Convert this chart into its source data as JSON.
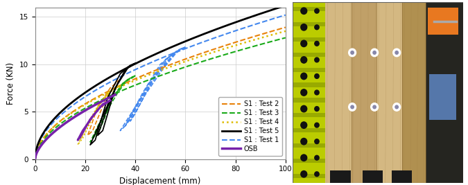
{
  "xlabel": "Displacement (mm)",
  "ylabel": "Force (KN)",
  "xlim": [
    0,
    100
  ],
  "ylim": [
    0,
    16
  ],
  "xticks": [
    0,
    20,
    40,
    60,
    80,
    100
  ],
  "yticks": [
    0,
    5,
    10,
    15
  ],
  "legend_entries": [
    {
      "label": "S1 : Test 2",
      "color": "#E8820A",
      "linestyle": "--",
      "lw": 1.5
    },
    {
      "label": "S1 : Test 3",
      "color": "#1AAA1A",
      "linestyle": "--",
      "lw": 1.5
    },
    {
      "label": "S1 : Test 4",
      "color": "#DDBB00",
      "linestyle": ":",
      "lw": 1.8
    },
    {
      "label": "S1 : Test 5",
      "color": "#000000",
      "linestyle": "-",
      "lw": 2.0
    },
    {
      "label": "S1 : Test 1",
      "color": "#4488EE",
      "linestyle": "--",
      "lw": 1.5
    },
    {
      "label": "OSB",
      "color": "#7722AA",
      "linestyle": "-",
      "lw": 2.5
    }
  ],
  "photo": {
    "yellow_frame_color": "#BBCC00",
    "wood_color_light": "#D4B882",
    "wood_color_mid": "#C0A068",
    "wood_color_dark": "#B09050",
    "dark_bg_color": "#2A2A2A",
    "machinery_color": "#E87820",
    "bolt_color": "#111111"
  },
  "background_color": "#ffffff"
}
